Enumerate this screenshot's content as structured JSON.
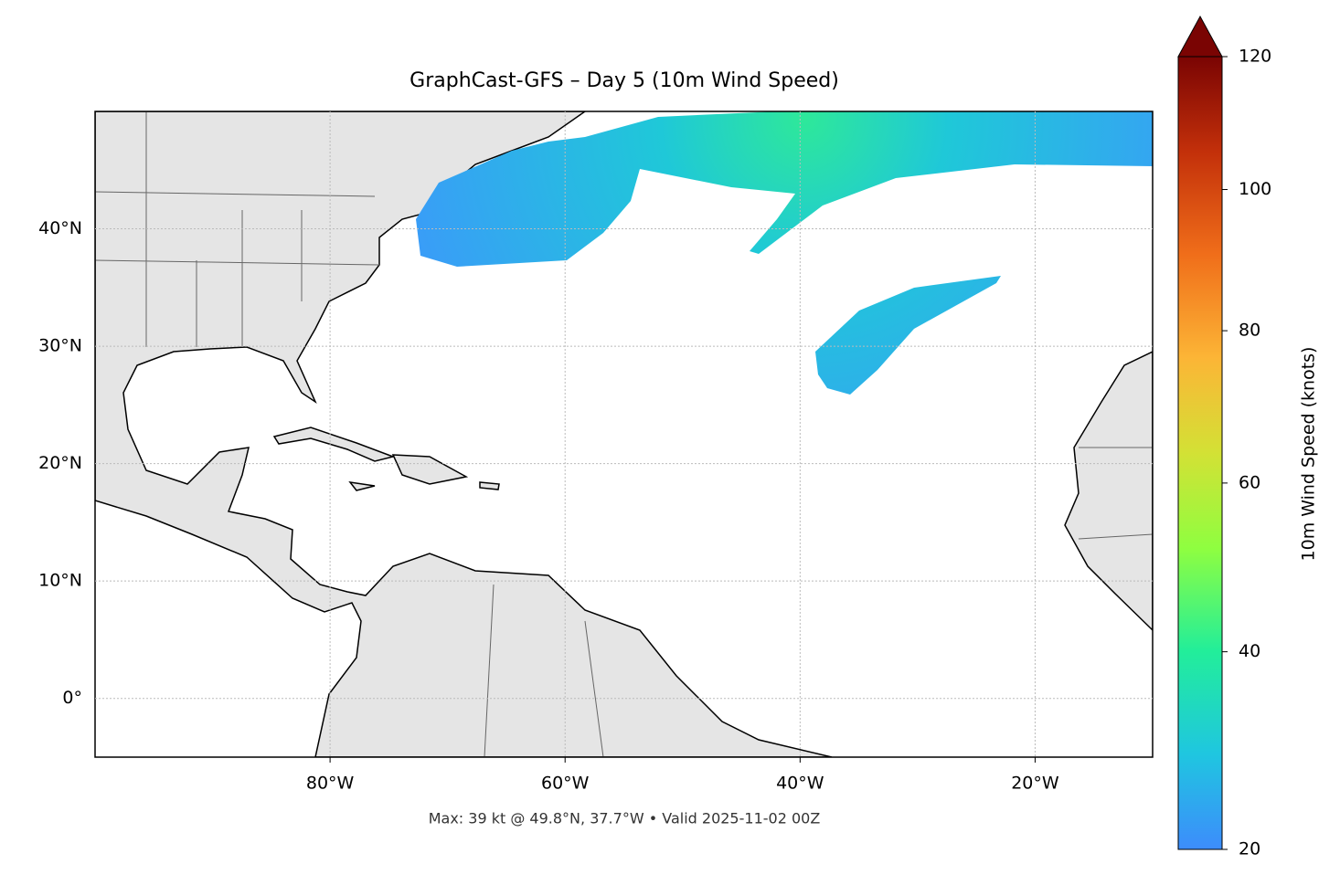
{
  "chart_data": {
    "type": "map",
    "title": "GraphCast-GFS – Day 5 (10m Wind Speed)",
    "annotation": "Max: 39 kt @ 49.8°N, 37.7°W • Valid 2025-11-02 00Z",
    "xlim": [
      -100,
      -10
    ],
    "ylim": [
      -5,
      50
    ],
    "xticks": [
      {
        "value": -80,
        "label": "80°W"
      },
      {
        "value": -60,
        "label": "60°W"
      },
      {
        "value": -40,
        "label": "40°W"
      },
      {
        "value": -20,
        "label": "20°W"
      }
    ],
    "yticks": [
      {
        "value": 0,
        "label": "0°"
      },
      {
        "value": 10,
        "label": "10°N"
      },
      {
        "value": 20,
        "label": "20°N"
      },
      {
        "value": 30,
        "label": "30°N"
      },
      {
        "value": 40,
        "label": "40°N"
      }
    ],
    "grid": true,
    "colorbar": {
      "label": "10m Wind Speed (knots)",
      "lim": [
        20,
        120
      ],
      "ticks": [
        20,
        40,
        60,
        80,
        100,
        120
      ],
      "gamma": 0.7,
      "extend": "max"
    }
  }
}
